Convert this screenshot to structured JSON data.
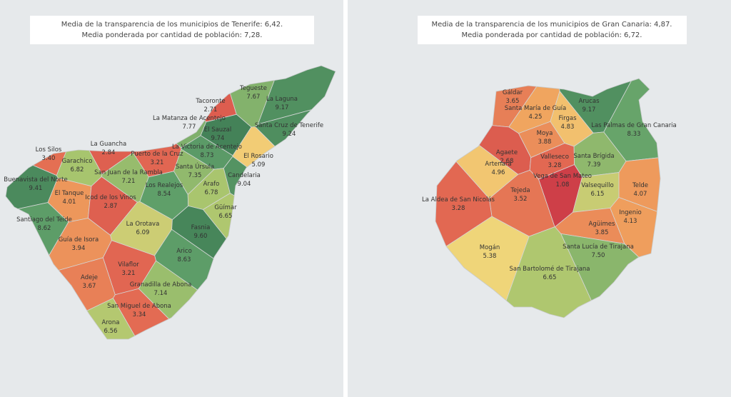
{
  "maps": [
    {
      "header": [
        "Media de la transparencia de los municipios de Tenerife: 6,42.",
        "Media ponderada por cantidad de población: 7,28."
      ],
      "regions": [
        {
          "name": "Tacoronte",
          "value": 2.71
        },
        {
          "name": "Tegueste",
          "value": 7.67
        },
        {
          "name": "La Laguna",
          "value": 9.17
        },
        {
          "name": "La Matanza de Acentejo",
          "value": 7.77
        },
        {
          "name": "El Sauzal",
          "value": 9.74
        },
        {
          "name": "Santa Cruz de Tenerife",
          "value": 9.24
        },
        {
          "name": "La Guancha",
          "value": 2.84
        },
        {
          "name": "Puerto de la Cruz",
          "value": 3.21
        },
        {
          "name": "La Victoria de Acentejo",
          "value": 8.73
        },
        {
          "name": "El Rosario",
          "value": 5.09
        },
        {
          "name": "Los Silos",
          "value": 3.4,
          "value_label": "3.40"
        },
        {
          "name": "Garachico",
          "value": 6.82
        },
        {
          "name": "San Juan de la Rambla",
          "value": 7.21
        },
        {
          "name": "Santa Úrsula",
          "value": 7.35
        },
        {
          "name": "Candelaria",
          "value": 9.04
        },
        {
          "name": "Buenavista del Norte",
          "value": 9.41
        },
        {
          "name": "El Tanque",
          "value": 4.01
        },
        {
          "name": "Los Realejos",
          "value": 8.54
        },
        {
          "name": "Arafo",
          "value": 6.78
        },
        {
          "name": "Icod de los Vinos",
          "value": 2.87
        },
        {
          "name": "Güímar",
          "value": 6.65
        },
        {
          "name": "Santiago del Teide",
          "value": 8.62
        },
        {
          "name": "La Orotava",
          "value": 6.09
        },
        {
          "name": "Fasnia",
          "value": 9.6,
          "value_label": "9.60"
        },
        {
          "name": "Guía de Isora",
          "value": 3.94
        },
        {
          "name": "Arico",
          "value": 8.63
        },
        {
          "name": "Vilaflor",
          "value": 3.21
        },
        {
          "name": "Adeje",
          "value": 3.67
        },
        {
          "name": "Granadilla de Abona",
          "value": 7.14
        },
        {
          "name": "San Miguel de Abona",
          "value": 3.34
        },
        {
          "name": "Arona",
          "value": 6.56
        }
      ]
    },
    {
      "header": [
        "Media de la transparencia de los municipios de Gran Canaria: 4,87.",
        "Media ponderada por cantidad de población: 6,72."
      ],
      "regions": [
        {
          "name": "Gáldar",
          "value": 3.65
        },
        {
          "name": "Santa María de Guía",
          "value": 4.25
        },
        {
          "name": "Arucas",
          "value": 9.17
        },
        {
          "name": "Firgas",
          "value": 4.83
        },
        {
          "name": "Moya",
          "value": 3.88
        },
        {
          "name": "Las Palmas de Gran Canaria",
          "value": 8.33
        },
        {
          "name": "Agaete",
          "value": 2.68
        },
        {
          "name": "Valleseco",
          "value": 3.28
        },
        {
          "name": "Santa Brígida",
          "value": 7.39
        },
        {
          "name": "Artenara",
          "value": 4.96
        },
        {
          "name": "Vega de San Mateo",
          "value": 1.08
        },
        {
          "name": "Valsequillo",
          "value": 6.15
        },
        {
          "name": "Telde",
          "value": 4.07
        },
        {
          "name": "Tejeda",
          "value": 3.52
        },
        {
          "name": "La Aldea de San Nicolás",
          "value": 3.28
        },
        {
          "name": "Ingenio",
          "value": 4.13
        },
        {
          "name": "Agüimes",
          "value": 3.85
        },
        {
          "name": "Santa Lucía de Tirajana",
          "value": 7.5,
          "value_label": "7.50"
        },
        {
          "name": "Mogán",
          "value": 5.38
        },
        {
          "name": "San Bartolomé de Tirajana",
          "value": 6.65
        }
      ]
    }
  ]
}
